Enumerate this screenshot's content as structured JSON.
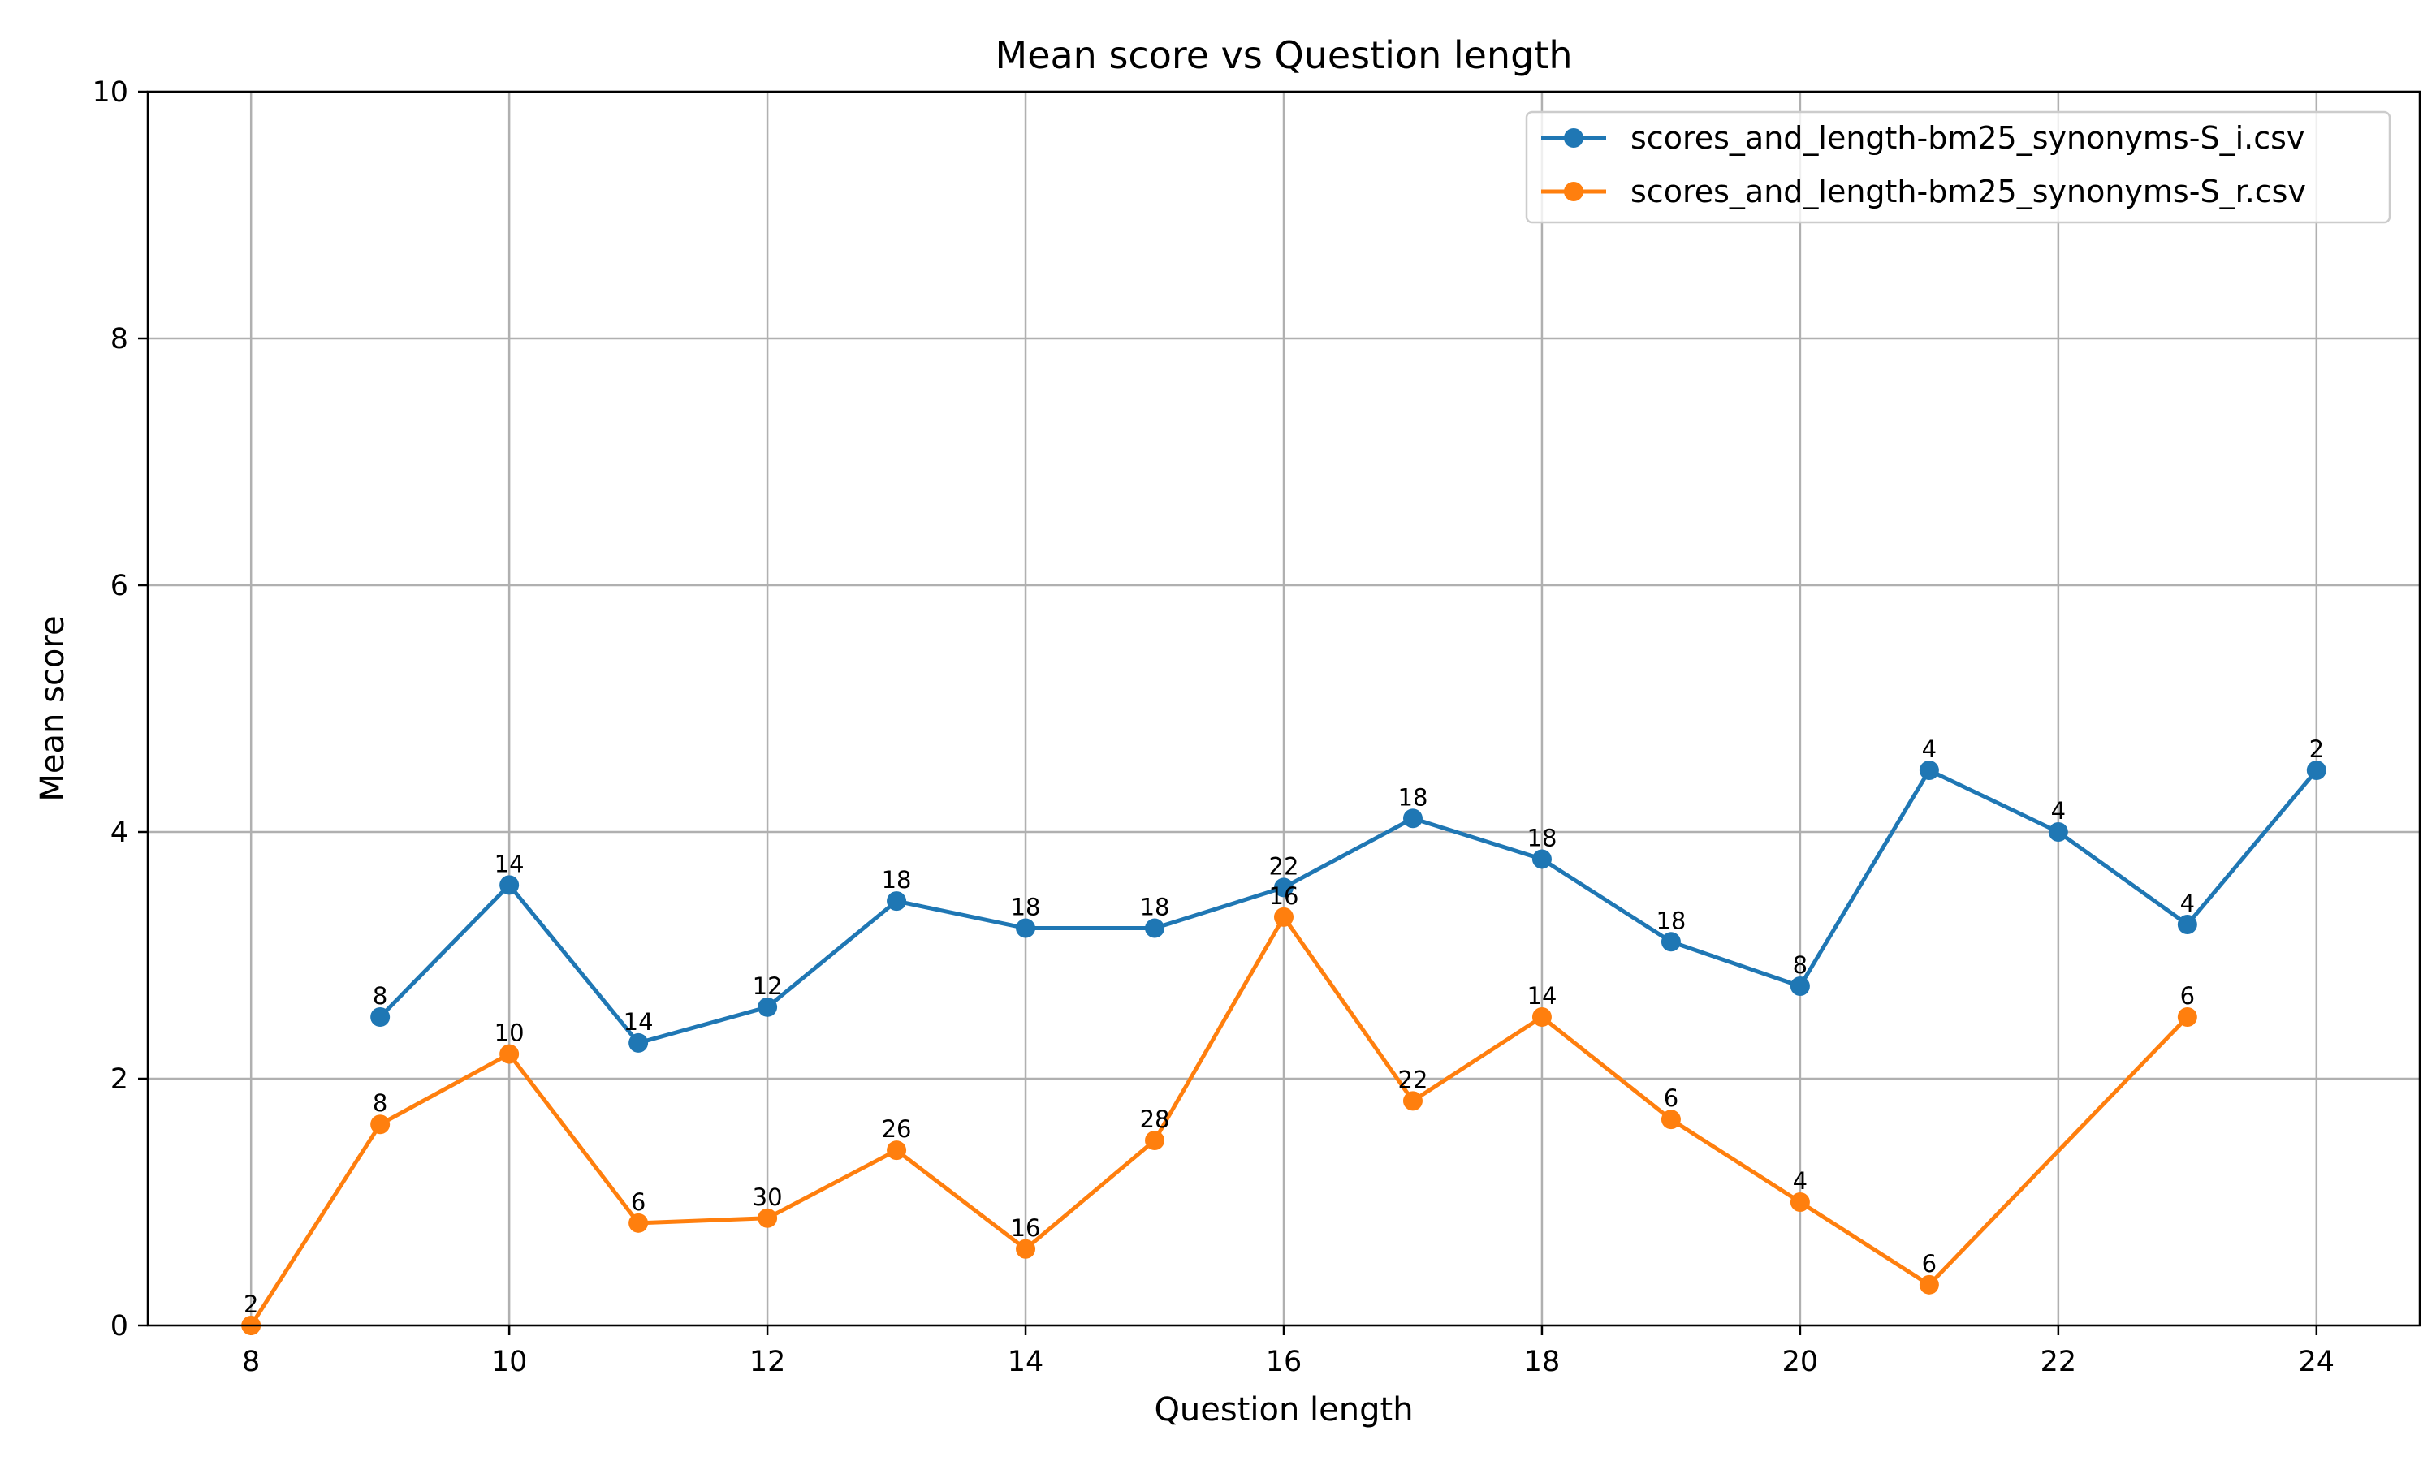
{
  "chart_data": {
    "type": "line",
    "title": "Mean score vs Question length",
    "xlabel": "Question length",
    "ylabel": "Mean score",
    "xlim": [
      7.2,
      24.8
    ],
    "ylim": [
      0,
      10
    ],
    "xticks": [
      8,
      10,
      12,
      14,
      16,
      18,
      20,
      22,
      24
    ],
    "yticks": [
      0,
      2,
      4,
      6,
      8,
      10
    ],
    "grid": true,
    "legend_position": "top-right",
    "series": [
      {
        "name": "scores_and_length-bm25_synonyms-S_i.csv",
        "color": "#1f77b4",
        "x": [
          9,
          10,
          11,
          12,
          13,
          14,
          15,
          16,
          17,
          18,
          19,
          20,
          21,
          22,
          23,
          24
        ],
        "y": [
          2.5,
          3.57,
          2.29,
          2.58,
          3.44,
          3.22,
          3.22,
          3.55,
          4.11,
          3.78,
          3.11,
          2.75,
          4.5,
          4.0,
          3.25,
          4.5
        ],
        "labels": [
          "8",
          "14",
          "14",
          "12",
          "18",
          "18",
          "18",
          "22",
          "18",
          "18",
          "18",
          "8",
          "4",
          "4",
          "4",
          "2"
        ]
      },
      {
        "name": "scores_and_length-bm25_synonyms-S_r.csv",
        "color": "#ff7f0e",
        "x": [
          8,
          9,
          10,
          11,
          12,
          13,
          14,
          15,
          16,
          17,
          18,
          19,
          20,
          21,
          23
        ],
        "y": [
          0.0,
          1.63,
          2.2,
          0.83,
          0.87,
          1.42,
          0.62,
          1.5,
          3.31,
          1.82,
          2.5,
          1.67,
          1.0,
          0.33,
          2.5
        ],
        "labels": [
          "2",
          "8",
          "10",
          "6",
          "30",
          "26",
          "16",
          "28",
          "16",
          "22",
          "14",
          "6",
          "4",
          "6",
          "6"
        ]
      }
    ]
  }
}
